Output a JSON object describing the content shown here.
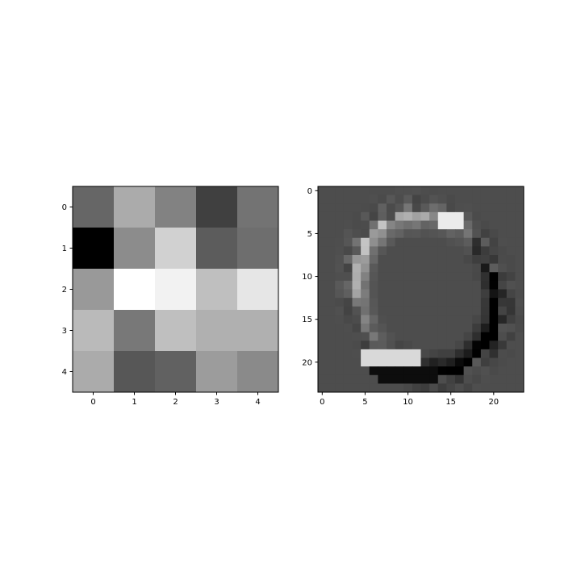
{
  "chart_data": [
    {
      "type": "heatmap",
      "title": "",
      "xlabel": "",
      "ylabel": "",
      "colormap": "gray",
      "grid": false,
      "rows": 5,
      "cols": 5,
      "xticks": [
        "0",
        "1",
        "2",
        "3",
        "4"
      ],
      "yticks": [
        "0",
        "1",
        "2",
        "3",
        "4"
      ],
      "values": [
        [
          0.4,
          0.67,
          0.51,
          0.25,
          0.45
        ],
        [
          0.0,
          0.55,
          0.82,
          0.36,
          0.43
        ],
        [
          0.6,
          1.0,
          0.95,
          0.75,
          0.9
        ],
        [
          0.73,
          0.47,
          0.75,
          0.69,
          0.69
        ],
        [
          0.67,
          0.34,
          0.38,
          0.61,
          0.54
        ]
      ]
    },
    {
      "type": "heatmap",
      "title": "",
      "xlabel": "",
      "ylabel": "",
      "colormap": "gray",
      "grid": false,
      "rows": 24,
      "cols": 24,
      "xticks": [
        "0",
        "5",
        "10",
        "15",
        "20"
      ],
      "yticks": [
        "0",
        "5",
        "10",
        "15",
        "20"
      ],
      "background_value": 0.3
    }
  ]
}
